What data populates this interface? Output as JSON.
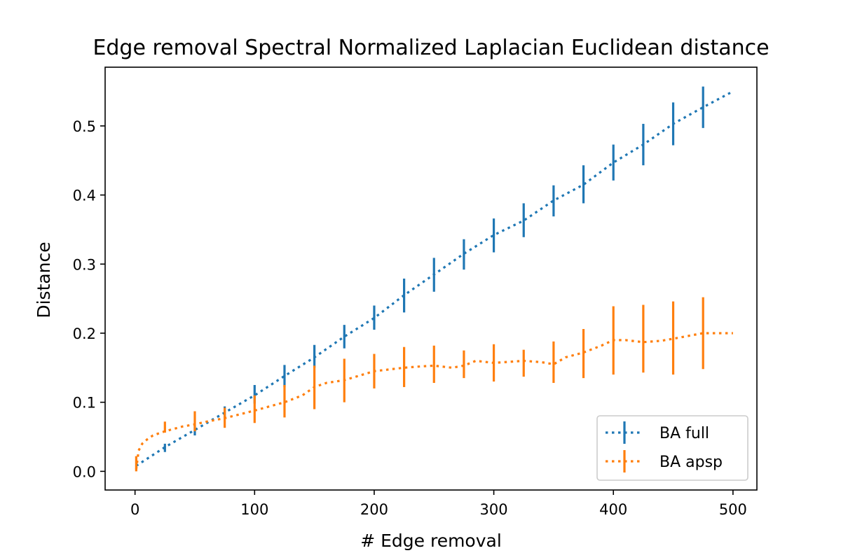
{
  "chart_data": {
    "type": "line",
    "title": "Edge removal Spectral Normalized Laplacian Euclidean distance",
    "xlabel": "# Edge removal",
    "ylabel": "Distance",
    "xlim": [
      -25,
      520
    ],
    "ylim": [
      -0.027,
      0.585
    ],
    "xticks": [
      0,
      100,
      200,
      300,
      400,
      500
    ],
    "yticks": [
      0.0,
      0.1,
      0.2,
      0.3,
      0.4,
      0.5
    ],
    "ytick_labels": [
      "0.0",
      "0.1",
      "0.2",
      "0.3",
      "0.4",
      "0.5"
    ],
    "legend_position": "lower right",
    "grid": false,
    "series": [
      {
        "name": "BA full",
        "color": "#1f77b4",
        "linestyle": "dotted",
        "x": [
          1,
          25,
          50,
          75,
          100,
          125,
          150,
          175,
          200,
          225,
          250,
          275,
          300,
          325,
          350,
          375,
          400,
          425,
          450,
          475,
          500
        ],
        "y": [
          0.008,
          0.035,
          0.06,
          0.085,
          0.11,
          0.138,
          0.165,
          0.195,
          0.222,
          0.255,
          0.285,
          0.315,
          0.342,
          0.363,
          0.392,
          0.415,
          0.447,
          0.473,
          0.503,
          0.527,
          0.55
        ],
        "err_x": [
          25,
          50,
          75,
          100,
          125,
          150,
          175,
          200,
          225,
          250,
          275,
          300,
          325,
          350,
          375,
          400,
          425,
          450,
          475
        ],
        "err_low": [
          0.028,
          0.052,
          0.077,
          0.098,
          0.122,
          0.15,
          0.178,
          0.205,
          0.23,
          0.26,
          0.292,
          0.317,
          0.339,
          0.369,
          0.388,
          0.421,
          0.443,
          0.472,
          0.497
        ],
        "err_high": [
          0.04,
          0.066,
          0.094,
          0.125,
          0.154,
          0.183,
          0.212,
          0.24,
          0.279,
          0.309,
          0.336,
          0.366,
          0.388,
          0.414,
          0.443,
          0.473,
          0.503,
          0.534,
          0.557
        ]
      },
      {
        "name": "BA apsp",
        "color": "#ff7f0e",
        "linestyle": "dotted",
        "x": [
          1,
          3,
          6,
          10,
          15,
          25,
          40,
          50,
          60,
          75,
          100,
          125,
          140,
          150,
          160,
          175,
          200,
          225,
          240,
          250,
          265,
          275,
          285,
          300,
          325,
          340,
          350,
          360,
          375,
          390,
          400,
          410,
          425,
          440,
          450,
          475,
          500
        ],
        "y": [
          0.003,
          0.03,
          0.04,
          0.046,
          0.052,
          0.058,
          0.065,
          0.068,
          0.072,
          0.077,
          0.088,
          0.1,
          0.11,
          0.122,
          0.128,
          0.132,
          0.145,
          0.15,
          0.152,
          0.153,
          0.15,
          0.153,
          0.16,
          0.157,
          0.16,
          0.158,
          0.155,
          0.165,
          0.172,
          0.182,
          0.19,
          0.19,
          0.187,
          0.189,
          0.192,
          0.2,
          0.2
        ],
        "err_x": [
          1,
          25,
          50,
          75,
          100,
          125,
          150,
          175,
          200,
          225,
          250,
          275,
          300,
          325,
          350,
          375,
          400,
          425,
          450,
          475
        ],
        "err_low": [
          0.0,
          0.056,
          0.058,
          0.063,
          0.07,
          0.078,
          0.09,
          0.1,
          0.12,
          0.122,
          0.128,
          0.135,
          0.13,
          0.137,
          0.128,
          0.135,
          0.14,
          0.143,
          0.14,
          0.148
        ],
        "err_high": [
          0.022,
          0.072,
          0.087,
          0.092,
          0.11,
          0.125,
          0.153,
          0.163,
          0.17,
          0.18,
          0.182,
          0.175,
          0.184,
          0.176,
          0.188,
          0.206,
          0.239,
          0.241,
          0.246,
          0.252
        ]
      }
    ]
  }
}
